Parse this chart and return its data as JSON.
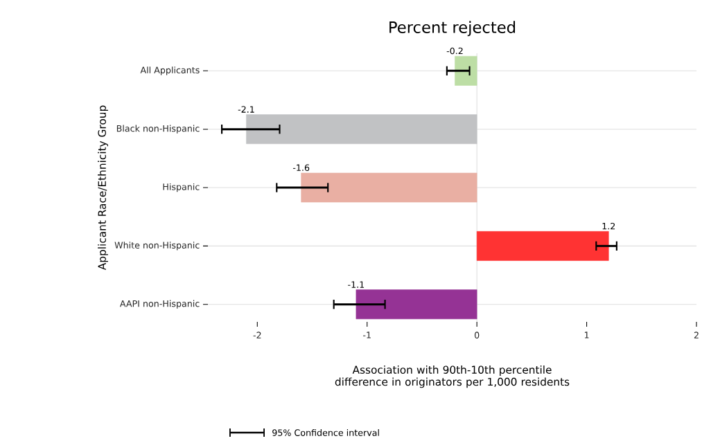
{
  "chart_data": {
    "type": "bar",
    "orientation": "horizontal",
    "title": "Percent rejected",
    "xlabel": "Association with 90th-10th percentile difference in originators per 1,000 residents",
    "ylabel": "Applicant Race/Ethnicity Group",
    "categories": [
      "All Applicants",
      "Black non-Hispanic",
      "Hispanic",
      "White non-Hispanic",
      "AAPI non-Hispanic"
    ],
    "values": [
      -0.2,
      -2.1,
      -1.6,
      1.2,
      -1.1
    ],
    "colors": [
      "#bddea5",
      "#c1c2c4",
      "#e9afa3",
      "#ff3333",
      "#953395"
    ],
    "errors": [
      [
        -0.28,
        -0.06
      ],
      [
        -2.33,
        -1.79
      ],
      [
        -1.83,
        -1.35
      ],
      [
        1.08,
        1.28
      ],
      [
        -1.31,
        -0.83
      ]
    ],
    "data_labels": true,
    "xlim": [
      -2.45,
      2
    ],
    "xticks": [
      -2,
      -1,
      0,
      1,
      2
    ],
    "grid": "y",
    "ref_lines": [
      {
        "axis": "x",
        "value": 0,
        "color": "#dddddd"
      }
    ],
    "annotations": [
      "95% Confidence interval"
    ]
  }
}
